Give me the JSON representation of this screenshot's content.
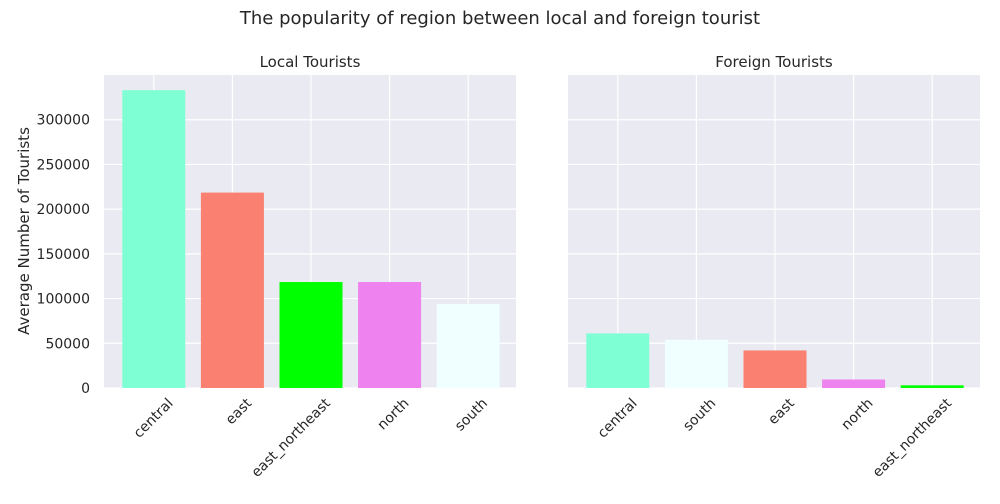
{
  "figure": {
    "title": "The popularity of region between local and foreign tourist"
  },
  "chart_data": [
    {
      "type": "bar",
      "title": "Local Tourists",
      "ylabel": "Average Number of Tourists",
      "xlabel": "",
      "categories": [
        "central",
        "east",
        "east_northeast",
        "north",
        "south"
      ],
      "values": [
        333000,
        218500,
        118500,
        118500,
        94000
      ],
      "colors": [
        "#7fffd4",
        "#fa8072",
        "#00ff00",
        "#ee82ee",
        "#f0ffff"
      ],
      "yticks": [
        0,
        50000,
        100000,
        150000,
        200000,
        250000,
        300000
      ],
      "ylim": [
        0,
        350000
      ],
      "grid": true
    },
    {
      "type": "bar",
      "title": "Foreign Tourists",
      "ylabel": "",
      "xlabel": "",
      "categories": [
        "central",
        "south",
        "east",
        "north",
        "east_northeast"
      ],
      "values": [
        61000,
        54000,
        42000,
        9500,
        3000
      ],
      "colors": [
        "#7fffd4",
        "#f0ffff",
        "#fa8072",
        "#ee82ee",
        "#00ff00"
      ],
      "ylim": [
        0,
        350000
      ],
      "grid": true
    }
  ]
}
